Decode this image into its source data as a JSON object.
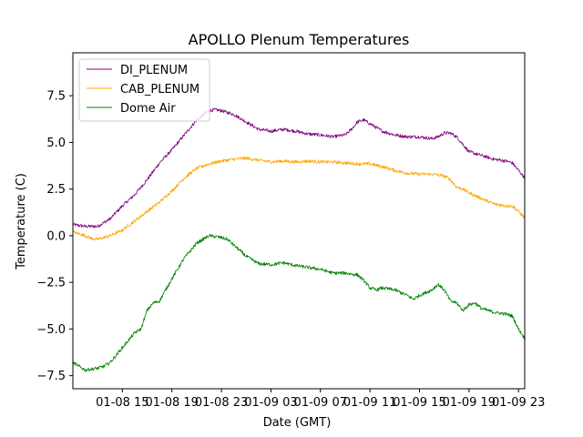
{
  "chart_data": {
    "type": "line",
    "title": "APOLLO Plenum Temperatures",
    "xlabel": "Date (GMT)",
    "ylabel": "Temperature (C)",
    "xlim": [
      11.0,
      47.5
    ],
    "ylim": [
      -8.2,
      9.8
    ],
    "grid": false,
    "legend_position": "top-left",
    "x_ticks": [
      {
        "value": 15,
        "label": "01-08 15"
      },
      {
        "value": 19,
        "label": "01-08 19"
      },
      {
        "value": 23,
        "label": "01-08 23"
      },
      {
        "value": 27,
        "label": "01-09 03"
      },
      {
        "value": 31,
        "label": "01-09 07"
      },
      {
        "value": 35,
        "label": "01-09 11"
      },
      {
        "value": 39,
        "label": "01-09 15"
      },
      {
        "value": 43,
        "label": "01-09 19"
      },
      {
        "value": 47,
        "label": "01-09 23"
      }
    ],
    "y_ticks": [
      {
        "value": -7.5,
        "label": "−7.5"
      },
      {
        "value": -5.0,
        "label": "−5.0"
      },
      {
        "value": -2.5,
        "label": "−2.5"
      },
      {
        "value": 0.0,
        "label": "0.0"
      },
      {
        "value": 2.5,
        "label": "2.5"
      },
      {
        "value": 5.0,
        "label": "5.0"
      },
      {
        "value": 7.5,
        "label": "7.5"
      }
    ],
    "series": [
      {
        "name": "DI_PLENUM",
        "color": "#800080",
        "x": [
          11.0,
          12.0,
          13.0,
          13.5,
          14.0,
          15.0,
          16.0,
          17.0,
          18.0,
          19.0,
          20.0,
          21.0,
          22.0,
          22.5,
          23.0,
          24.0,
          25.0,
          26.0,
          27.0,
          28.0,
          29.0,
          30.0,
          31.0,
          32.0,
          33.0,
          33.5,
          34.0,
          34.5,
          35.0,
          36.0,
          37.0,
          38.0,
          39.0,
          40.0,
          40.5,
          41.0,
          41.5,
          42.0,
          42.5,
          43.0,
          44.0,
          45.0,
          46.0,
          46.5,
          47.0,
          47.5
        ],
        "y": [
          0.6,
          0.5,
          0.5,
          0.7,
          0.9,
          1.6,
          2.2,
          3.0,
          3.9,
          4.6,
          5.4,
          6.2,
          6.7,
          6.75,
          6.7,
          6.5,
          6.1,
          5.7,
          5.6,
          5.7,
          5.6,
          5.45,
          5.4,
          5.3,
          5.4,
          5.7,
          6.1,
          6.2,
          6.0,
          5.6,
          5.4,
          5.3,
          5.3,
          5.2,
          5.3,
          5.5,
          5.5,
          5.3,
          4.9,
          4.5,
          4.3,
          4.1,
          4.0,
          3.9,
          3.5,
          3.1
        ]
      },
      {
        "name": "CAB_PLENUM",
        "color": "#ffa500",
        "x": [
          11.0,
          12.0,
          12.5,
          13.0,
          13.5,
          14.0,
          15.0,
          16.0,
          17.0,
          18.0,
          19.0,
          20.0,
          21.0,
          22.0,
          23.0,
          24.0,
          25.0,
          26.0,
          27.0,
          28.0,
          29.0,
          30.0,
          31.0,
          32.0,
          33.0,
          34.0,
          35.0,
          36.0,
          37.0,
          38.0,
          39.0,
          40.0,
          41.0,
          41.5,
          42.0,
          42.5,
          43.0,
          44.0,
          45.0,
          46.0,
          46.5,
          47.0,
          47.5
        ],
        "y": [
          0.2,
          0.0,
          -0.15,
          -0.2,
          -0.1,
          0.0,
          0.3,
          0.8,
          1.3,
          1.8,
          2.4,
          3.1,
          3.6,
          3.85,
          4.0,
          4.1,
          4.15,
          4.05,
          3.95,
          4.0,
          3.95,
          4.0,
          3.95,
          3.95,
          3.9,
          3.85,
          3.85,
          3.7,
          3.5,
          3.35,
          3.3,
          3.3,
          3.2,
          3.0,
          2.6,
          2.5,
          2.3,
          2.0,
          1.7,
          1.6,
          1.6,
          1.3,
          0.95
        ]
      },
      {
        "name": "Dome Air",
        "color": "#008000",
        "x": [
          11.0,
          12.0,
          13.0,
          13.5,
          14.0,
          15.0,
          16.0,
          16.5,
          17.0,
          17.5,
          18.0,
          19.0,
          20.0,
          21.0,
          22.0,
          23.0,
          23.5,
          24.0,
          25.0,
          26.0,
          27.0,
          28.0,
          29.0,
          30.0,
          31.0,
          32.0,
          33.0,
          34.0,
          34.5,
          35.0,
          35.5,
          36.0,
          37.0,
          38.0,
          38.5,
          39.0,
          40.0,
          40.5,
          41.0,
          41.5,
          42.0,
          42.5,
          43.0,
          43.5,
          44.0,
          45.0,
          46.0,
          46.5,
          47.0,
          47.5
        ],
        "y": [
          -6.8,
          -7.2,
          -7.1,
          -7.0,
          -6.8,
          -6.0,
          -5.2,
          -5.0,
          -4.0,
          -3.6,
          -3.5,
          -2.3,
          -1.2,
          -0.4,
          0.0,
          -0.1,
          -0.2,
          -0.5,
          -1.1,
          -1.5,
          -1.55,
          -1.45,
          -1.6,
          -1.7,
          -1.8,
          -2.0,
          -2.0,
          -2.1,
          -2.4,
          -2.8,
          -2.9,
          -2.8,
          -2.9,
          -3.2,
          -3.4,
          -3.2,
          -2.9,
          -2.6,
          -2.9,
          -3.5,
          -3.6,
          -4.0,
          -3.7,
          -3.6,
          -3.9,
          -4.1,
          -4.2,
          -4.3,
          -5.0,
          -5.5
        ]
      }
    ]
  }
}
